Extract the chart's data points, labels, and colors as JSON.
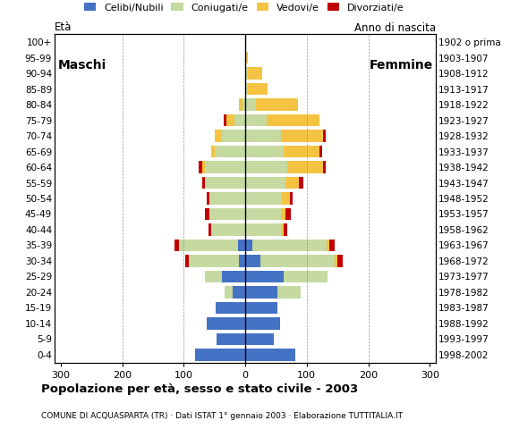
{
  "age_groups": [
    "100+",
    "95-99",
    "90-94",
    "85-89",
    "80-84",
    "75-79",
    "70-74",
    "65-69",
    "60-64",
    "55-59",
    "50-54",
    "45-49",
    "40-44",
    "35-39",
    "30-34",
    "25-29",
    "20-24",
    "15-19",
    "10-14",
    "5-9",
    "0-4"
  ],
  "birth_years": [
    "1902 o prima",
    "1903-1907",
    "1908-1912",
    "1913-1917",
    "1918-1922",
    "1923-1927",
    "1928-1932",
    "1933-1937",
    "1938-1942",
    "1943-1947",
    "1948-1952",
    "1953-1957",
    "1958-1962",
    "1963-1967",
    "1968-1972",
    "1973-1977",
    "1978-1982",
    "1983-1987",
    "1988-1992",
    "1993-1997",
    "1998-2002"
  ],
  "male_celibi": [
    0,
    0,
    0,
    0,
    0,
    0,
    0,
    0,
    0,
    0,
    0,
    0,
    0,
    12,
    10,
    38,
    20,
    48,
    62,
    47,
    82
  ],
  "male_coniugati": [
    0,
    0,
    0,
    0,
    5,
    18,
    38,
    50,
    65,
    65,
    58,
    58,
    55,
    95,
    82,
    28,
    14,
    0,
    0,
    0,
    0
  ],
  "male_vedovi": [
    0,
    0,
    0,
    0,
    5,
    12,
    12,
    5,
    5,
    0,
    0,
    0,
    0,
    0,
    0,
    0,
    0,
    0,
    0,
    0,
    0
  ],
  "male_divorziati": [
    0,
    0,
    0,
    0,
    0,
    5,
    0,
    0,
    5,
    5,
    5,
    8,
    5,
    8,
    5,
    0,
    0,
    0,
    0,
    0,
    0
  ],
  "female_nubili": [
    0,
    0,
    0,
    0,
    0,
    0,
    0,
    0,
    0,
    0,
    0,
    0,
    0,
    12,
    25,
    62,
    52,
    52,
    57,
    47,
    82
  ],
  "female_coniugate": [
    0,
    0,
    5,
    5,
    18,
    35,
    58,
    62,
    68,
    65,
    60,
    58,
    58,
    120,
    120,
    72,
    38,
    0,
    0,
    0,
    0
  ],
  "female_vedove": [
    0,
    5,
    22,
    32,
    68,
    85,
    68,
    58,
    58,
    22,
    12,
    8,
    5,
    5,
    5,
    0,
    0,
    0,
    0,
    0,
    0
  ],
  "female_divorziate": [
    0,
    0,
    0,
    0,
    0,
    0,
    5,
    5,
    5,
    8,
    5,
    8,
    5,
    8,
    8,
    0,
    0,
    0,
    0,
    0,
    0
  ],
  "colors": {
    "celibi": "#4472C4",
    "coniugati": "#C5D9A0",
    "vedovi": "#F5C342",
    "divorziati": "#C00000"
  },
  "xlim": 310,
  "title": "Popolazione per età, sesso e stato civile - 2003",
  "subtitle": "COMUNE DI ACQUASPARTA (TR) · Dati ISTAT 1° gennaio 2003 · Elaborazione TUTTITALIA.IT",
  "legend_labels": [
    "Celibi/Nubili",
    "Coniugati/e",
    "Vedovi/e",
    "Divorziati/e"
  ],
  "label_maschi": "Maschi",
  "label_femmine": "Femmine",
  "ylabel_left": "Età",
  "ylabel_right": "Anno di nascita"
}
